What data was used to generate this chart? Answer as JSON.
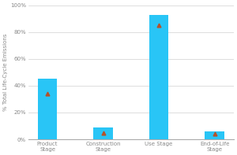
{
  "categories": [
    "Product\nStage",
    "Construction\nStage",
    "Use Stage",
    "End-of-Life\nStage"
  ],
  "bar_tops": [
    45,
    9,
    93,
    6
  ],
  "avg_markers": [
    34,
    5,
    85,
    4
  ],
  "bar_color": "#29C5F6",
  "marker_color": "#B5522A",
  "ylabel": "% Total Life-Cycle Emissions",
  "ylim": [
    0,
    100
  ],
  "yticks": [
    0,
    20,
    40,
    60,
    80,
    100
  ],
  "yticklabels": [
    "0%",
    "20%",
    "40%",
    "60%",
    "80%",
    "100%"
  ],
  "grid_color": "#d0d0d0",
  "background_color": "#ffffff",
  "bar_width": 0.35,
  "tick_fontsize": 5.0,
  "ylabel_fontsize": 5.0,
  "xlabel_fontsize": 5.0
}
